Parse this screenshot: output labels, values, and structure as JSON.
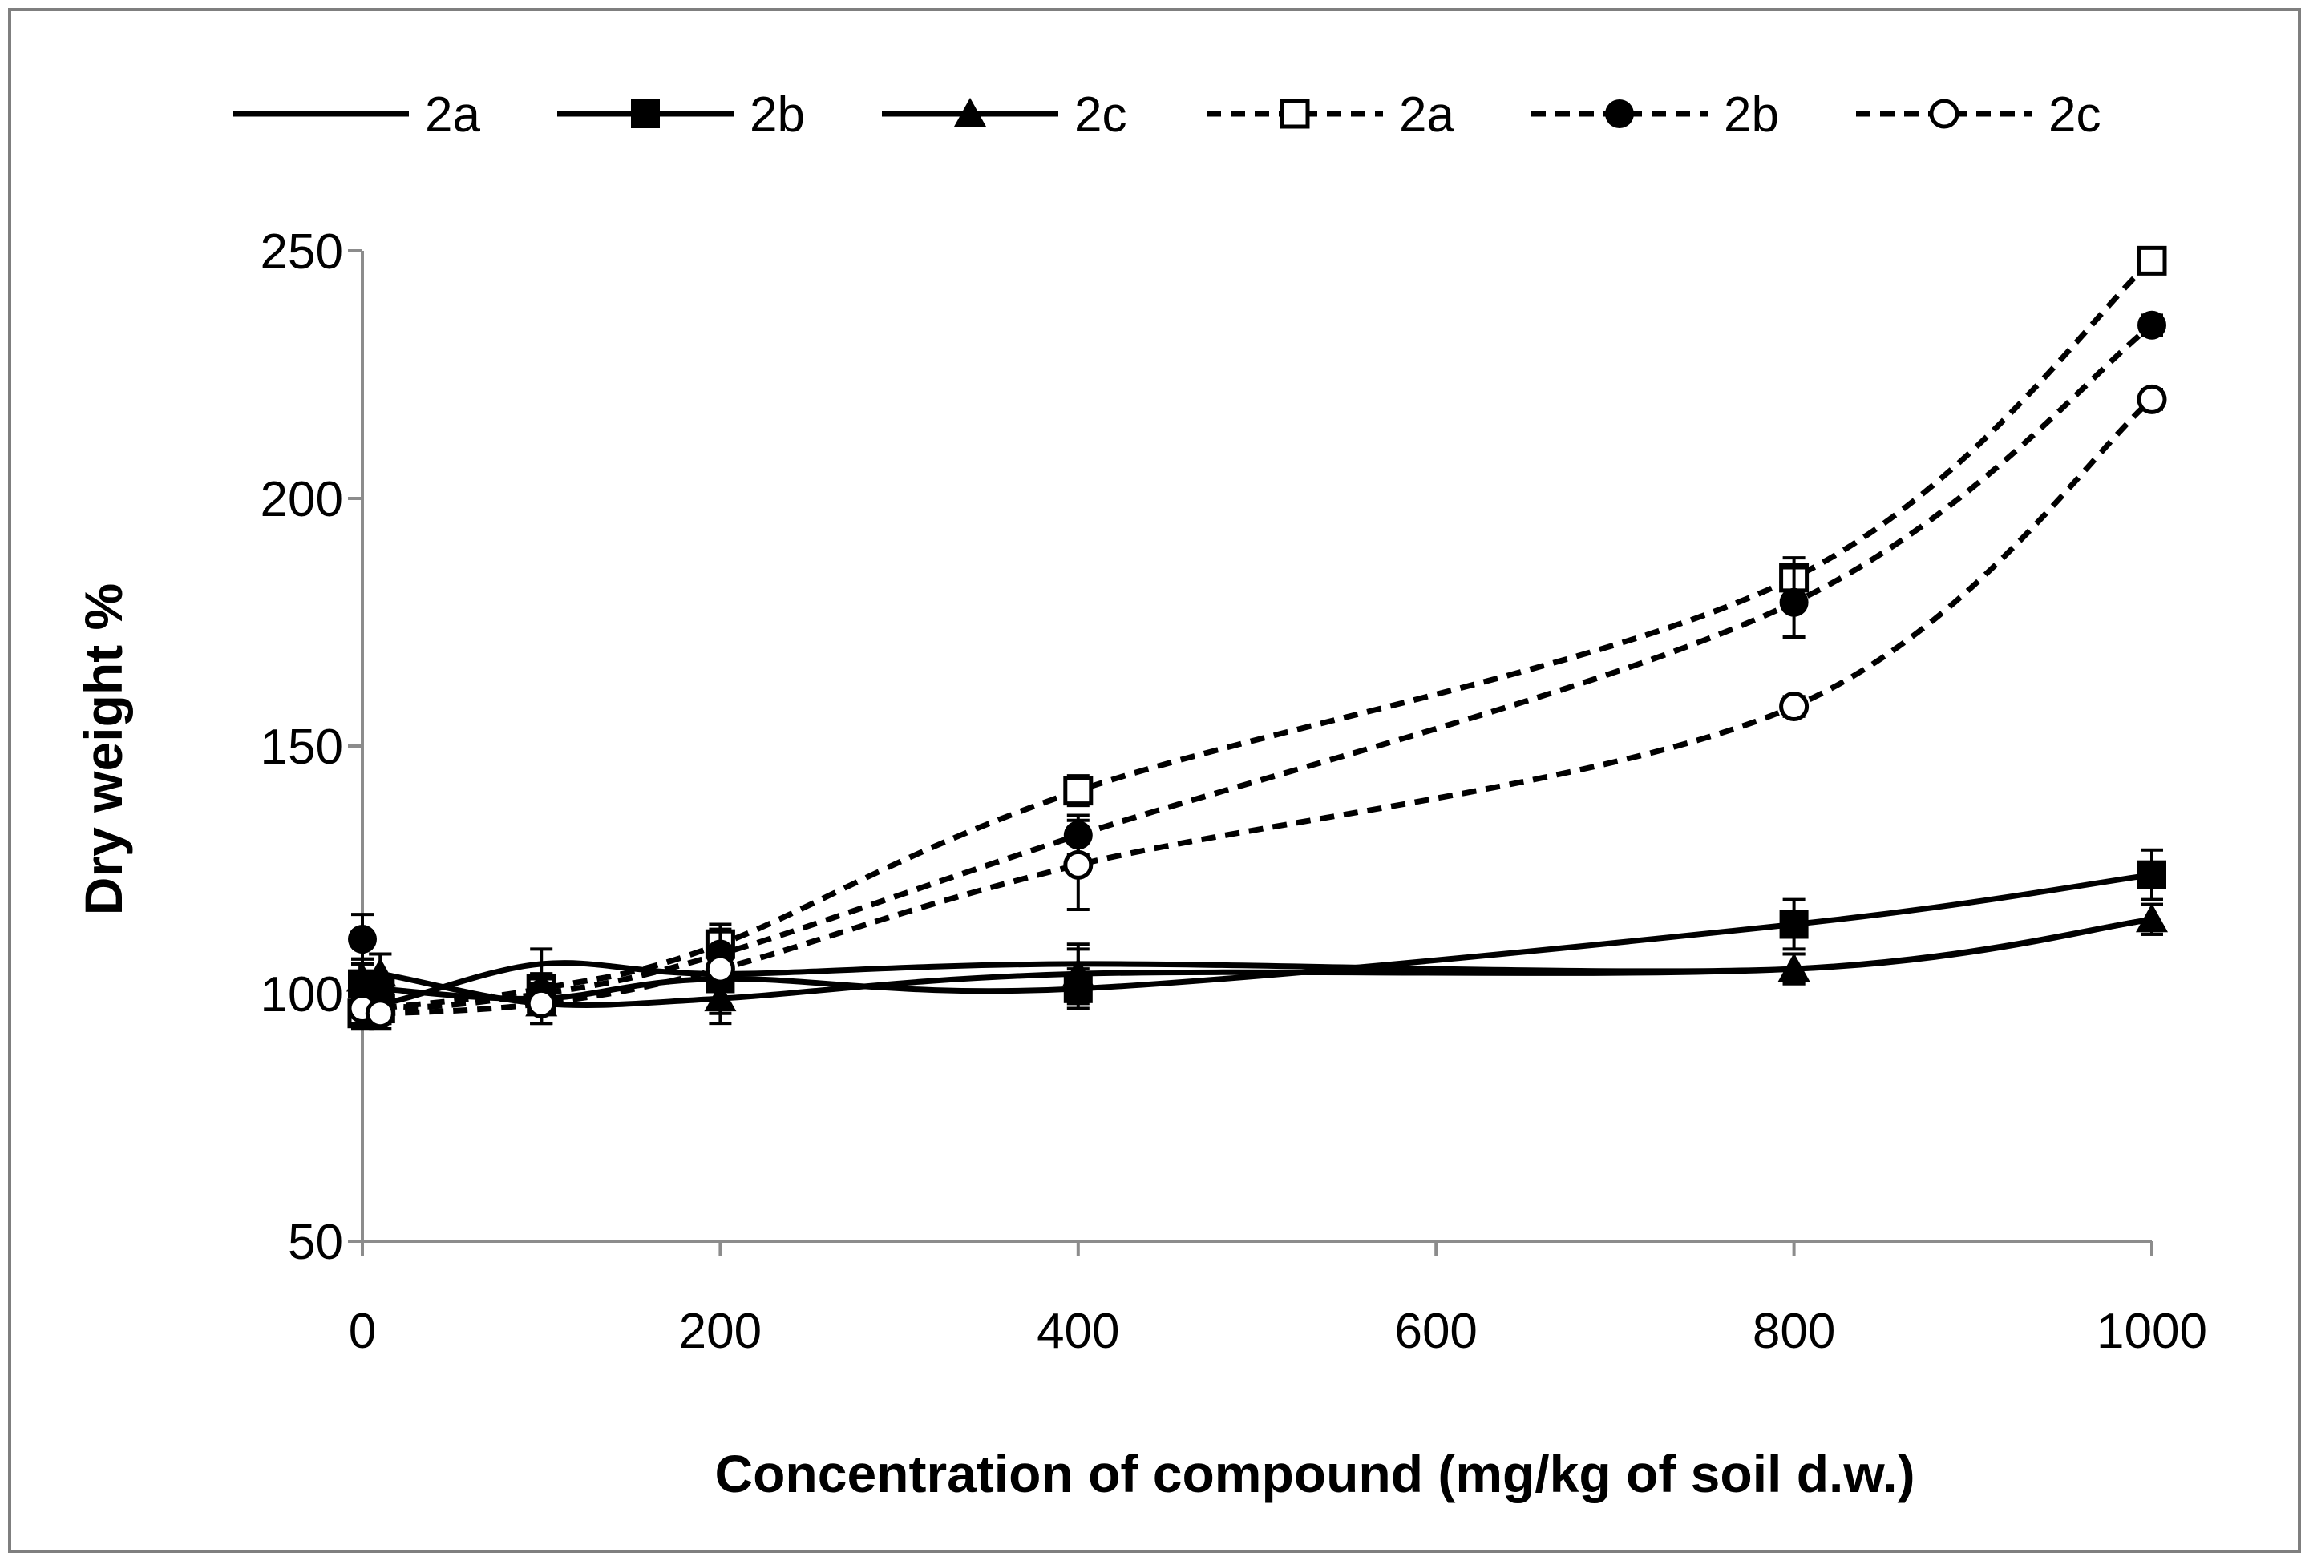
{
  "chart_data": {
    "type": "line",
    "title": "",
    "xlabel": "Concentration of compound (mg/kg  of soil d.w.)",
    "ylabel": "Dry weight  %",
    "xlim": [
      0,
      1000
    ],
    "ylim": [
      50,
      250
    ],
    "xticks": [
      0,
      200,
      400,
      600,
      800,
      1000
    ],
    "yticks": [
      50,
      100,
      150,
      200,
      250
    ],
    "grid": false,
    "legend_position": "top",
    "series": [
      {
        "name": "2a",
        "style": "solid",
        "marker": "none",
        "x": [
          0,
          10,
          100,
          200,
          400,
          800,
          1000
        ],
        "y": [
          103,
          98,
          106,
          104,
          106,
          105,
          115
        ],
        "err": [
          3,
          3,
          3,
          3,
          3,
          3,
          3
        ]
      },
      {
        "name": "2b",
        "style": "solid",
        "marker": "filled-square",
        "x": [
          0,
          10,
          100,
          200,
          400,
          800,
          1000
        ],
        "y": [
          102,
          101,
          99,
          103,
          101,
          114,
          124
        ],
        "err": [
          5,
          7,
          5,
          7,
          4,
          5,
          5
        ]
      },
      {
        "name": "2c",
        "style": "solid",
        "marker": "filled-triangle",
        "x": [
          0,
          10,
          100,
          200,
          400,
          800,
          1000
        ],
        "y": [
          103,
          104,
          98,
          99,
          104,
          105,
          115
        ],
        "err": [
          4,
          4,
          4,
          5,
          6,
          3,
          3
        ]
      },
      {
        "name": "2a",
        "style": "dashed",
        "marker": "open-square",
        "x": [
          0,
          10,
          100,
          200,
          400,
          800,
          1000
        ],
        "y": [
          96,
          97,
          101,
          110,
          141,
          184,
          248
        ],
        "err": [
          3,
          3,
          3,
          4,
          3,
          4,
          2
        ]
      },
      {
        "name": "2b",
        "style": "dashed",
        "marker": "filled-circle",
        "x": [
          0,
          10,
          100,
          200,
          400,
          800,
          1000
        ],
        "y": [
          111,
          98,
          100,
          108,
          132,
          179,
          235
        ],
        "err": [
          5,
          4,
          3,
          5,
          4,
          7,
          2
        ]
      },
      {
        "name": "2c",
        "style": "dashed",
        "marker": "open-circle",
        "x": [
          0,
          10,
          100,
          200,
          400,
          800,
          1000
        ],
        "y": [
          97,
          96,
          98,
          105,
          126,
          158,
          220
        ],
        "err": [
          3,
          3,
          4,
          4,
          9,
          2,
          2
        ]
      }
    ]
  },
  "colors": {
    "line": "#000000",
    "axis": "#8c8c8c",
    "frame": "#7f7f7f",
    "background": "#ffffff"
  }
}
